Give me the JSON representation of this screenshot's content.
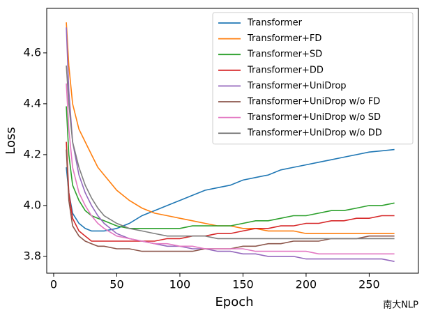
{
  "chart_data": {
    "type": "line",
    "xlabel": "Epoch",
    "ylabel": "Loss",
    "x": [
      10,
      12,
      15,
      20,
      25,
      30,
      35,
      40,
      50,
      60,
      70,
      80,
      90,
      100,
      110,
      120,
      130,
      140,
      150,
      160,
      170,
      180,
      190,
      200,
      210,
      220,
      230,
      240,
      250,
      260,
      270
    ],
    "series": [
      {
        "name": "Transformer",
        "color": "#1f77b4",
        "values": [
          4.15,
          4.05,
          3.97,
          3.93,
          3.91,
          3.9,
          3.9,
          3.9,
          3.91,
          3.93,
          3.96,
          3.98,
          4.0,
          4.02,
          4.04,
          4.06,
          4.07,
          4.08,
          4.1,
          4.11,
          4.12,
          4.14,
          4.15,
          4.16,
          4.17,
          4.18,
          4.19,
          4.2,
          4.21,
          4.215,
          4.22
        ]
      },
      {
        "name": "Transformer+FD",
        "color": "#ff7f0e",
        "values": [
          4.72,
          4.55,
          4.4,
          4.3,
          4.25,
          4.2,
          4.15,
          4.12,
          4.06,
          4.02,
          3.99,
          3.97,
          3.96,
          3.95,
          3.94,
          3.93,
          3.92,
          3.92,
          3.91,
          3.91,
          3.9,
          3.9,
          3.9,
          3.89,
          3.89,
          3.89,
          3.89,
          3.89,
          3.89,
          3.89,
          3.89
        ]
      },
      {
        "name": "Transformer+SD",
        "color": "#2ca02c",
        "values": [
          4.39,
          4.2,
          4.08,
          4.02,
          3.98,
          3.96,
          3.95,
          3.94,
          3.92,
          3.91,
          3.91,
          3.91,
          3.91,
          3.91,
          3.92,
          3.92,
          3.92,
          3.92,
          3.93,
          3.94,
          3.94,
          3.95,
          3.96,
          3.96,
          3.97,
          3.98,
          3.98,
          3.99,
          4.0,
          4.0,
          4.01
        ]
      },
      {
        "name": "Transformer+DD",
        "color": "#d62728",
        "values": [
          4.25,
          4.05,
          3.95,
          3.9,
          3.88,
          3.86,
          3.86,
          3.86,
          3.86,
          3.86,
          3.86,
          3.86,
          3.87,
          3.87,
          3.88,
          3.88,
          3.89,
          3.89,
          3.9,
          3.91,
          3.91,
          3.92,
          3.92,
          3.93,
          3.93,
          3.94,
          3.94,
          3.95,
          3.95,
          3.96,
          3.96
        ]
      },
      {
        "name": "Transformer+UniDrop",
        "color": "#9467bd",
        "values": [
          4.7,
          4.45,
          4.25,
          4.12,
          4.05,
          4.0,
          3.96,
          3.93,
          3.89,
          3.87,
          3.86,
          3.85,
          3.84,
          3.84,
          3.83,
          3.83,
          3.82,
          3.82,
          3.81,
          3.81,
          3.8,
          3.8,
          3.8,
          3.79,
          3.79,
          3.79,
          3.79,
          3.79,
          3.79,
          3.79,
          3.78
        ]
      },
      {
        "name": "Transformer+UniDrop w/o FD",
        "color": "#8c564b",
        "values": [
          4.22,
          4.02,
          3.92,
          3.88,
          3.86,
          3.85,
          3.84,
          3.84,
          3.83,
          3.83,
          3.82,
          3.82,
          3.82,
          3.82,
          3.82,
          3.83,
          3.83,
          3.83,
          3.84,
          3.84,
          3.85,
          3.85,
          3.86,
          3.86,
          3.86,
          3.87,
          3.87,
          3.87,
          3.88,
          3.88,
          3.88
        ]
      },
      {
        "name": "Transformer+UniDrop w/o SD",
        "color": "#e377c2",
        "values": [
          4.48,
          4.3,
          4.15,
          4.05,
          4.0,
          3.96,
          3.93,
          3.91,
          3.88,
          3.87,
          3.86,
          3.85,
          3.85,
          3.84,
          3.84,
          3.83,
          3.83,
          3.83,
          3.83,
          3.82,
          3.82,
          3.82,
          3.82,
          3.82,
          3.81,
          3.81,
          3.81,
          3.81,
          3.81,
          3.81,
          3.81
        ]
      },
      {
        "name": "Transformer+UniDrop w/o DD",
        "color": "#7f7f7f",
        "values": [
          4.55,
          4.4,
          4.25,
          4.15,
          4.08,
          4.03,
          3.99,
          3.96,
          3.93,
          3.91,
          3.9,
          3.89,
          3.88,
          3.88,
          3.88,
          3.88,
          3.87,
          3.87,
          3.87,
          3.87,
          3.87,
          3.87,
          3.87,
          3.87,
          3.87,
          3.87,
          3.87,
          3.87,
          3.87,
          3.87,
          3.87
        ]
      }
    ],
    "xlim": [
      -5.5,
      289
    ],
    "ylim": [
      3.734,
      4.775
    ],
    "xticks": [
      0,
      50,
      100,
      150,
      200,
      250
    ],
    "yticks": [
      3.8,
      {
        "value": 4,
        "label": "4.0"
      },
      4.2,
      4.4,
      4.6
    ],
    "legend": "upper right",
    "watermark": "南大NLP"
  }
}
